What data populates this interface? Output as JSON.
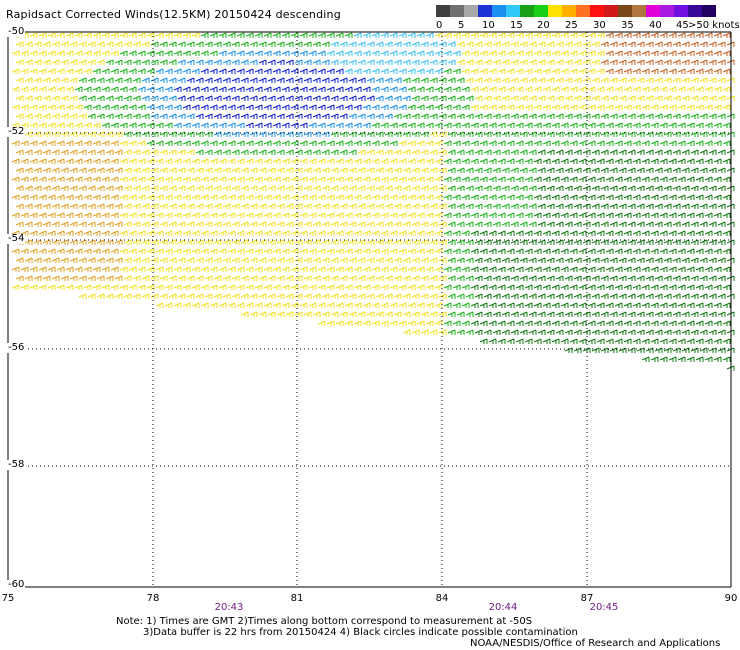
{
  "title": "Rapidsact Corrected Winds(12.5KM) 20150424 descending",
  "legend": {
    "colors": [
      "#404040",
      "#707070",
      "#a8a8a8",
      "#1c32d4",
      "#1a90f0",
      "#30c8f8",
      "#18a018",
      "#18d018",
      "#ffe000",
      "#ffb000",
      "#ff7020",
      "#ff1010",
      "#d01818",
      "#7a4818",
      "#b07840",
      "#e000d8",
      "#a818e0",
      "#7010e0",
      "#380898",
      "#200060"
    ],
    "labels": [
      "0",
      "5",
      "10",
      "15",
      "20",
      "25",
      "30",
      "35",
      "40",
      "45",
      ">50 knots"
    ]
  },
  "map": {
    "lat_labels": [
      "-50",
      "-52",
      "-54",
      "-56",
      "-58",
      "-60"
    ],
    "lon_labels": [
      "75",
      "78",
      "81",
      "84",
      "87",
      "90"
    ],
    "time_labels": [
      "20:43",
      "20:44",
      "20:45"
    ],
    "lat_range": [
      -60,
      -50
    ],
    "lon_range": [
      75,
      90
    ],
    "grid": true,
    "wind_colors": {
      "blue": "#1020d0",
      "light_blue": "#1890e8",
      "cyan": "#38c0f0",
      "dark_green": "#107810",
      "green": "#18b018",
      "yellow": "#f0e020",
      "orange": "#e0a020",
      "brown": "#c06020"
    }
  },
  "notes": {
    "line1": "Note: 1) Times are GMT 2)Times along bottom correspond to measurement at -50S",
    "line2": "3)Data buffer is 22 hrs from 20150424 4) Black circles indicate possible contamination",
    "line3": "NOAA/NESDIS/Office of Research and Applications"
  }
}
